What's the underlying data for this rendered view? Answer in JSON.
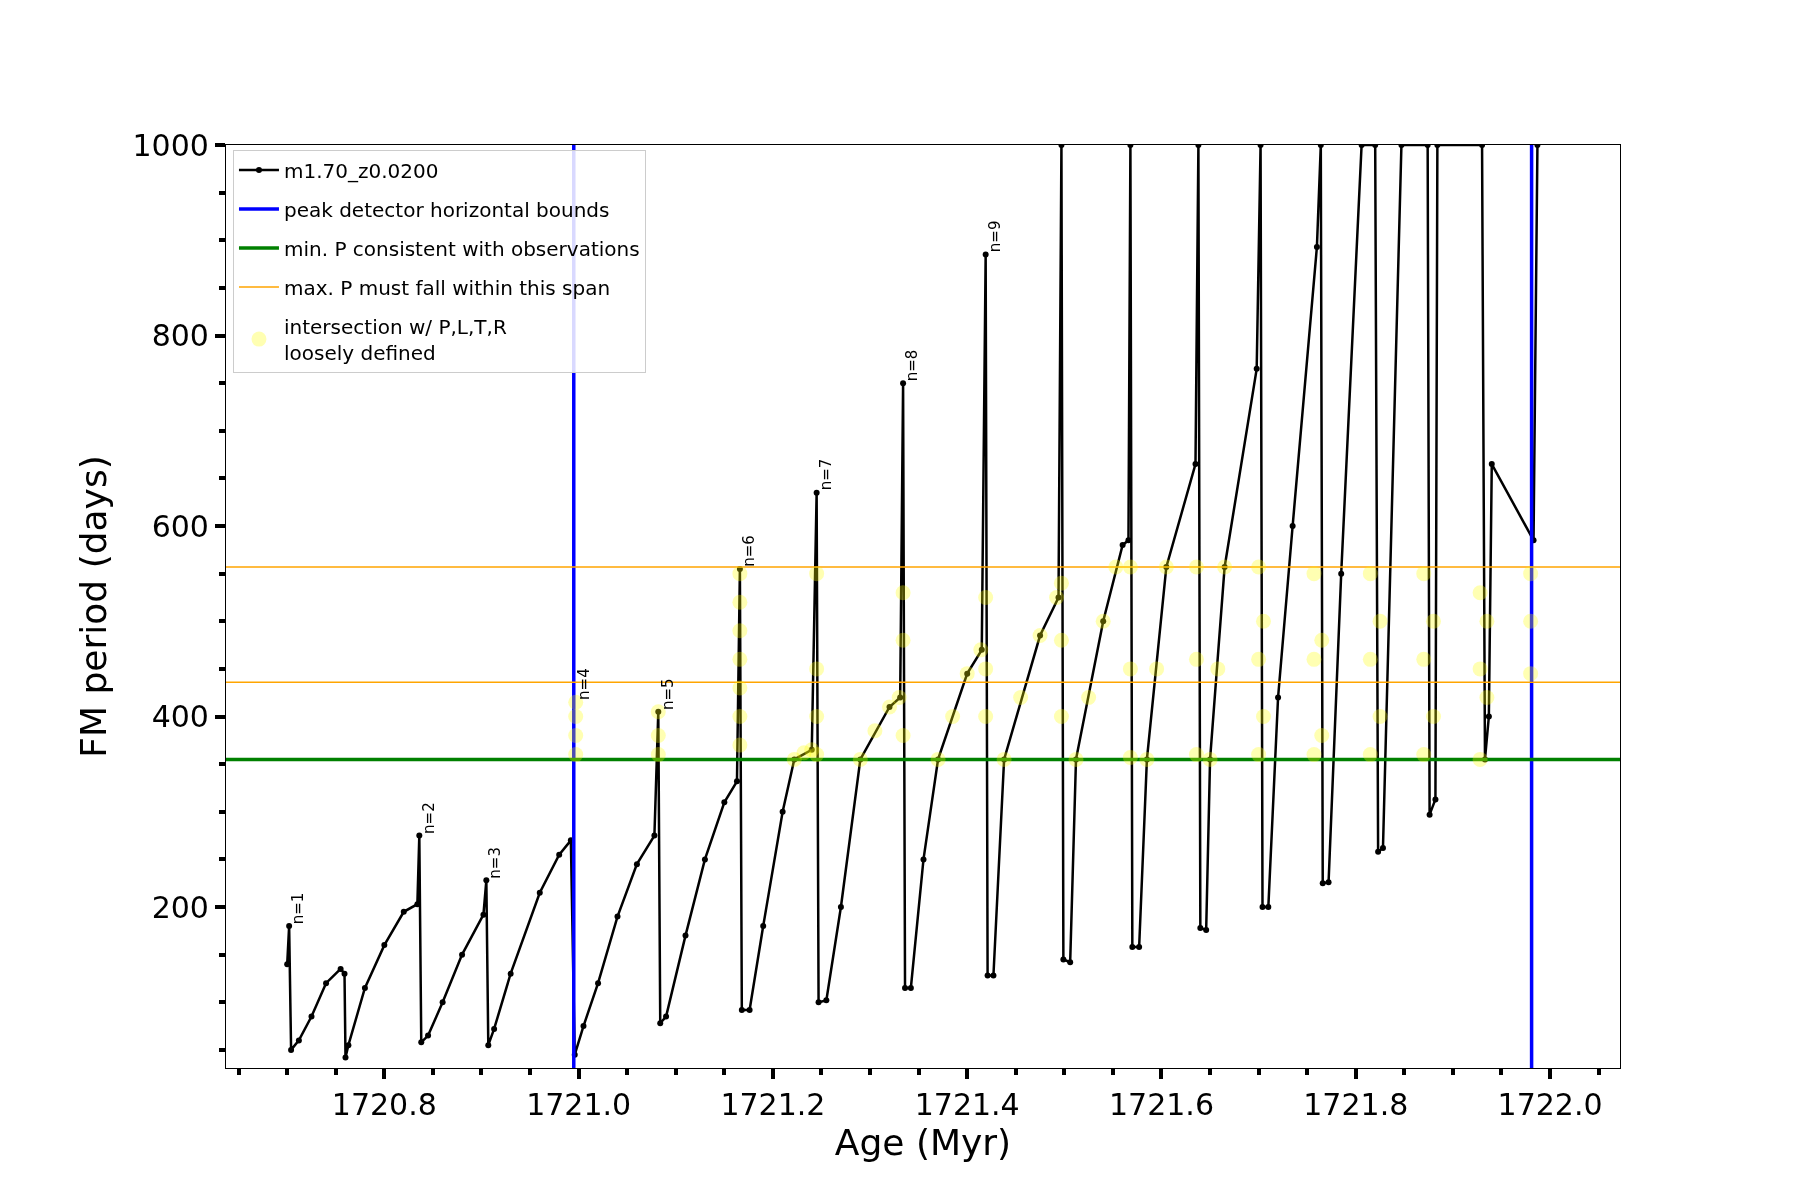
{
  "chart_data": {
    "type": "line",
    "xlabel": "Age (Myr)",
    "ylabel": "FM period (days)",
    "xlim": [
      1720.637,
      1722.072
    ],
    "ylim": [
      31,
      1000
    ],
    "xticks": [
      {
        "value": 1720.65,
        "label": null
      },
      {
        "value": 1720.7,
        "label": null
      },
      {
        "value": 1720.75,
        "label": null
      },
      1720.8,
      {
        "value": 1720.85,
        "label": null
      },
      {
        "value": 1720.9,
        "label": null
      },
      {
        "value": 1720.95,
        "label": null
      },
      {
        "value": 1721.0,
        "label": "1721.0"
      },
      {
        "value": 1721.05,
        "label": null
      },
      {
        "value": 1721.1,
        "label": null
      },
      {
        "value": 1721.15,
        "label": null
      },
      1721.2,
      {
        "value": 1721.25,
        "label": null
      },
      {
        "value": 1721.3,
        "label": null
      },
      {
        "value": 1721.35,
        "label": null
      },
      1721.4,
      {
        "value": 1721.45,
        "label": null
      },
      {
        "value": 1721.5,
        "label": null
      },
      {
        "value": 1721.55,
        "label": null
      },
      1721.6,
      {
        "value": 1721.65,
        "label": null
      },
      {
        "value": 1721.7,
        "label": null
      },
      {
        "value": 1721.75,
        "label": null
      },
      1721.8,
      {
        "value": 1721.85,
        "label": null
      },
      {
        "value": 1721.9,
        "label": null
      },
      {
        "value": 1721.95,
        "label": null
      },
      {
        "value": 1722.0,
        "label": "1722.0"
      },
      {
        "value": 1722.05,
        "label": null
      }
    ],
    "yticks": [
      {
        "value": 50,
        "label": null
      },
      {
        "value": 100,
        "label": null
      },
      {
        "value": 150,
        "label": null
      },
      200,
      {
        "value": 250,
        "label": null
      },
      {
        "value": 300,
        "label": null
      },
      {
        "value": 350,
        "label": null
      },
      400,
      {
        "value": 450,
        "label": null
      },
      {
        "value": 500,
        "label": null
      },
      {
        "value": 550,
        "label": null
      },
      600,
      {
        "value": 650,
        "label": null
      },
      {
        "value": 700,
        "label": null
      },
      {
        "value": 750,
        "label": null
      },
      800,
      {
        "value": 850,
        "label": null
      },
      {
        "value": 900,
        "label": null
      },
      {
        "value": 950,
        "label": null
      },
      1000
    ],
    "legend": "top left",
    "series": [
      {
        "name": "m1.70_z0.0200",
        "marker": "circle",
        "color": "#000000",
        "x": [
          1720.7,
          1720.702,
          1720.704,
          1720.712,
          1720.725,
          1720.74,
          1720.755,
          1720.759,
          1720.76,
          1720.763,
          1720.78,
          1720.8,
          1720.82,
          1720.834,
          1720.836,
          1720.838,
          1720.845,
          1720.86,
          1720.88,
          1720.902,
          1720.905,
          1720.907,
          1720.913,
          1720.93,
          1720.96,
          1720.98,
          1720.992,
          1720.996,
          1721.005,
          1721.02,
          1721.04,
          1721.06,
          1721.078,
          1721.082,
          1721.084,
          1721.09,
          1721.11,
          1721.13,
          1721.15,
          1721.163,
          1721.166,
          1721.168,
          1721.176,
          1721.19,
          1721.21,
          1721.222,
          1721.24,
          1721.245,
          1721.247,
          1721.255,
          1721.27,
          1721.29,
          1721.32,
          1721.331,
          1721.334,
          1721.336,
          1721.342,
          1721.355,
          1721.37,
          1721.4,
          1721.415,
          1721.419,
          1721.421,
          1721.427,
          1721.438,
          1721.475,
          1721.494,
          1721.497,
          1721.499,
          1721.506,
          1721.512,
          1721.54,
          1721.56,
          1721.566,
          1721.568,
          1721.57,
          1721.577,
          1721.585,
          1721.605,
          1721.635,
          1721.638,
          1721.64,
          1721.646,
          1721.65,
          1721.665,
          1721.698,
          1721.702,
          1721.704,
          1721.71,
          1721.72,
          1721.735,
          1721.76,
          1721.764,
          1721.766,
          1721.772,
          1721.785,
          1721.806,
          1721.82,
          1721.823,
          1721.828,
          1721.847,
          1721.874,
          1721.876,
          1721.882,
          1721.884,
          1721.93,
          1721.933,
          1721.937,
          1721.94,
          1721.983,
          1721.987
        ],
        "values": [
          140,
          180,
          50,
          60,
          85,
          120,
          135,
          130,
          42,
          55,
          115,
          160,
          195,
          203,
          275,
          58,
          65,
          100,
          150,
          192,
          228,
          55,
          72,
          130,
          215,
          255,
          270,
          45,
          75,
          120,
          190,
          245,
          275,
          405,
          78,
          85,
          170,
          250,
          310,
          332,
          555,
          92,
          92,
          180,
          300,
          355,
          365,
          635,
          100,
          102,
          200,
          355,
          410,
          420,
          750,
          115,
          115,
          250,
          355,
          445,
          470,
          885,
          128,
          128,
          355,
          485,
          525,
          1000,
          145,
          142,
          355,
          500,
          580,
          585,
          1000,
          158,
          158,
          355,
          557,
          665,
          1000,
          178,
          176,
          355,
          557,
          765,
          1000,
          200,
          200,
          420,
          600,
          893,
          1000,
          225,
          226,
          550,
          1000,
          1000,
          258,
          262,
          1000,
          1000,
          297,
          313,
          1000,
          1000,
          355,
          400,
          665,
          585,
          1000
        ]
      },
      {
        "name": "intersection w/ P,L,T,R\nloosely defined",
        "type": "scatter",
        "marker": "circle",
        "color": "#ffff00",
        "x": [
          1720.997,
          1720.997,
          1720.997,
          1720.997,
          1721.082,
          1721.082,
          1721.082,
          1721.166,
          1721.166,
          1721.166,
          1721.166,
          1721.166,
          1721.166,
          1721.166,
          1721.222,
          1721.232,
          1721.24,
          1721.245,
          1721.245,
          1721.245,
          1721.245,
          1721.29,
          1721.305,
          1721.32,
          1721.33,
          1721.334,
          1721.334,
          1721.334,
          1721.37,
          1721.385,
          1721.4,
          1721.414,
          1721.419,
          1721.419,
          1721.419,
          1721.438,
          1721.455,
          1721.475,
          1721.492,
          1721.497,
          1721.497,
          1721.497,
          1721.512,
          1721.525,
          1721.54,
          1721.553,
          1721.568,
          1721.568,
          1721.568,
          1721.585,
          1721.595,
          1721.605,
          1721.636,
          1721.636,
          1721.636,
          1721.65,
          1721.658,
          1721.665,
          1721.7,
          1721.7,
          1721.7,
          1721.705,
          1721.705,
          1721.757,
          1721.757,
          1721.757,
          1721.765,
          1721.765,
          1721.815,
          1721.815,
          1721.815,
          1721.825,
          1721.825,
          1721.87,
          1721.87,
          1721.87,
          1721.88,
          1721.88,
          1721.928,
          1721.928,
          1721.928,
          1721.935,
          1721.935,
          1721.98,
          1721.98,
          1721.98
        ],
        "values": [
          360,
          380,
          400,
          415,
          360,
          380,
          405,
          370,
          400,
          430,
          460,
          490,
          520,
          550,
          355,
          362,
          365,
          360,
          400,
          450,
          550,
          355,
          385,
          410,
          420,
          380,
          480,
          530,
          355,
          400,
          445,
          470,
          400,
          450,
          525,
          355,
          420,
          485,
          525,
          400,
          480,
          540,
          355,
          420,
          500,
          557,
          357,
          450,
          557,
          355,
          450,
          557,
          360,
          460,
          557,
          355,
          450,
          557,
          360,
          460,
          557,
          400,
          500,
          360,
          460,
          550,
          380,
          480,
          360,
          460,
          550,
          400,
          500,
          360,
          460,
          550,
          400,
          500,
          355,
          450,
          530,
          420,
          500,
          445,
          500,
          550
        ]
      }
    ],
    "ref_lines": [
      {
        "axis": "x",
        "value": 1720.995,
        "label": "peak detector horizontal bounds",
        "color": "#0000ff"
      },
      {
        "axis": "x",
        "value": 1721.981,
        "color": "#0000ff"
      },
      {
        "axis": "y",
        "value": 355,
        "label": "min. P consistent with observations",
        "color": "#008000"
      },
      {
        "axis": "y",
        "value": 557,
        "label": "max. P must fall within this span",
        "color": "#ffa500"
      },
      {
        "axis": "y",
        "value": 436,
        "color": "#ffa500"
      }
    ],
    "annotations": [
      {
        "text": "n=1",
        "x": 1720.702,
        "y": 180
      },
      {
        "text": "n=2",
        "x": 1720.836,
        "y": 275
      },
      {
        "text": "n=3",
        "x": 1720.905,
        "y": 228
      },
      {
        "text": "n=4",
        "x": 1720.997,
        "y": 415
      },
      {
        "text": "n=5",
        "x": 1721.082,
        "y": 405
      },
      {
        "text": "n=6",
        "x": 1721.166,
        "y": 555
      },
      {
        "text": "n=7",
        "x": 1721.245,
        "y": 635
      },
      {
        "text": "n=8",
        "x": 1721.334,
        "y": 750
      },
      {
        "text": "n=9",
        "x": 1721.419,
        "y": 885
      }
    ]
  }
}
